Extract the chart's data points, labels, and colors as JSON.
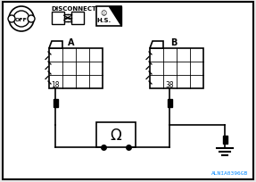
{
  "bg_color": "#e8e8e8",
  "border_color": "#000000",
  "line_color": "#000000",
  "title_text": "DISCONNECT",
  "label_A": "A",
  "label_B": "B",
  "pin_A": "18",
  "pin_B": "38",
  "watermark": "ALNIA0396GB",
  "watermark_color": "#0088ff",
  "fig_width": 2.87,
  "fig_height": 2.05,
  "dpi": 100
}
